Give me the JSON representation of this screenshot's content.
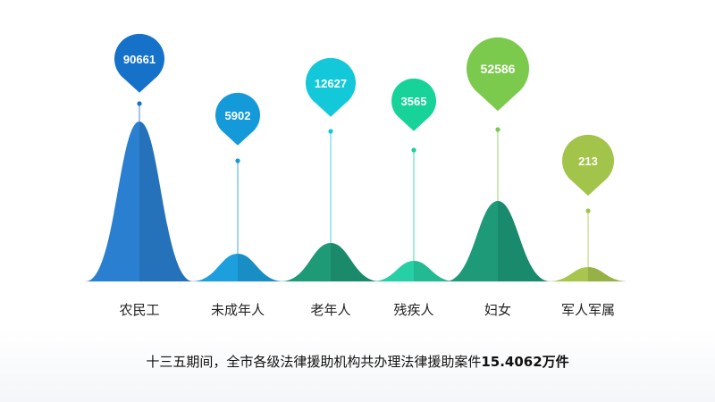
{
  "chart_data": {
    "type": "area",
    "title": "",
    "categories": [
      "农民工",
      "未成年人",
      "老年人",
      "残疾人",
      "妇女",
      "军人军属"
    ],
    "values": [
      90661,
      5902,
      12627,
      3565,
      52586,
      213
    ],
    "colors": [
      "#2a7fd0",
      "#1c9fdc",
      "#1f9a76",
      "#27cfa4",
      "#1e9a79",
      "#a8c64e"
    ],
    "pin_colors": [
      "#1672c8",
      "#159ad9",
      "#13c8d9",
      "#17d39a",
      "#7bc94d",
      "#a3c44a"
    ],
    "value_labels": [
      "90661",
      "5902",
      "12627",
      "3565",
      "52586",
      "213"
    ]
  },
  "summary": {
    "prefix": "十三五期间，全市各级法律援助机构共办理法律援助案件",
    "number": "15.4062",
    "suffix": "万件"
  }
}
